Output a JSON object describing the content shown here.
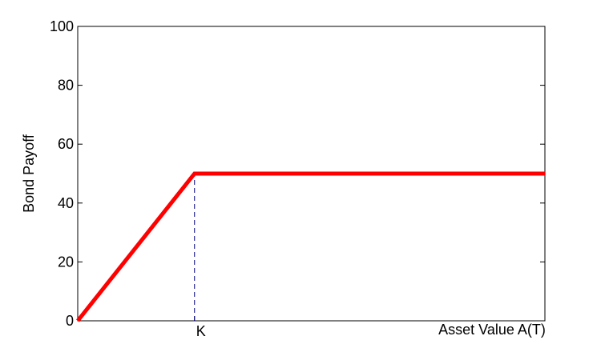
{
  "chart_data": {
    "type": "line",
    "title": "",
    "xlabel": "Asset Value A(T)",
    "ylabel": "Bond Payoff",
    "ylim": [
      0,
      100
    ],
    "yticks": [
      0,
      20,
      40,
      60,
      80,
      100
    ],
    "xticks": [
      {
        "value": 50,
        "label": "K"
      }
    ],
    "xlim": [
      0,
      200
    ],
    "grid": false,
    "series": [
      {
        "x": [
          0,
          50,
          200
        ],
        "y": [
          0,
          50,
          50
        ],
        "color": "#ff0000"
      }
    ],
    "annotations": [
      {
        "type": "vertical-dashed-line",
        "x": 50,
        "y0": 0,
        "y1": 50,
        "color": "#000080"
      }
    ]
  }
}
